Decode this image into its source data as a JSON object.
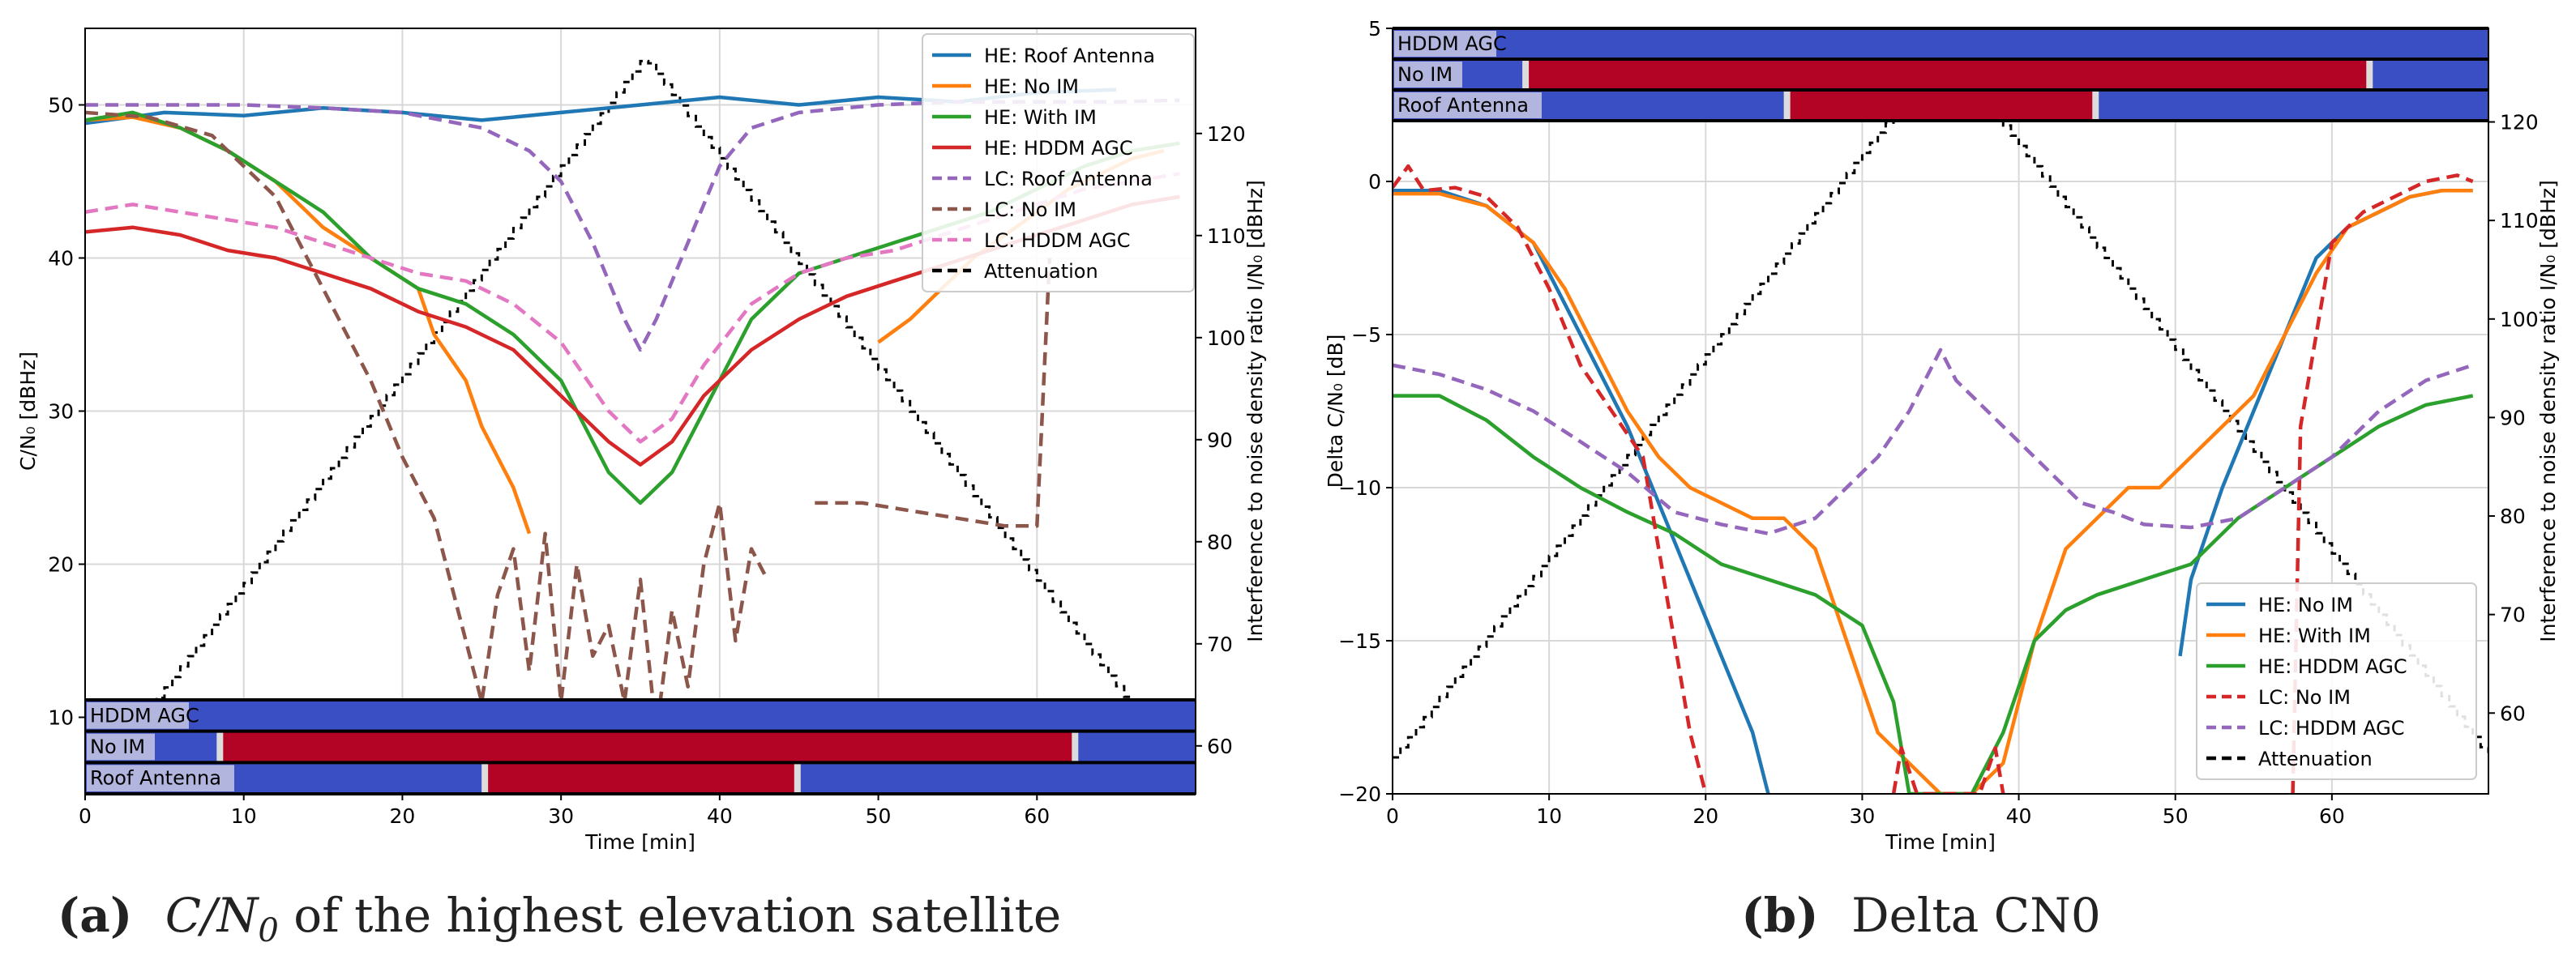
{
  "figure": {
    "caption_a_label": "(a)",
    "caption_a_text": "C/N",
    "caption_a_sub": "0",
    "caption_a_rest": " of the highest elevation satellite",
    "caption_b_label": "(b)",
    "caption_b_text": "Delta CN0"
  },
  "chart_data": [
    {
      "type": "line",
      "panel": "a",
      "xlabel": "Time [min]",
      "ylabel": "C/N₀ [dBHz]",
      "y2label": "Interference to noise density ratio I/N₀ [dBHz]",
      "xlim": [
        0,
        70
      ],
      "ylim": [
        5,
        55
      ],
      "y2lim": [
        55.3,
        130.3
      ],
      "xticks": [
        0,
        10,
        20,
        30,
        40,
        50,
        60
      ],
      "yticks": [
        10,
        20,
        30,
        40,
        50
      ],
      "y2ticks": [
        60,
        70,
        80,
        90,
        100,
        110,
        120
      ],
      "grid": true,
      "legend_position": "top-right",
      "series": [
        {
          "name": "HE: Roof Antenna",
          "color": "#1f77b4",
          "dash": "solid",
          "x": [
            0,
            5,
            10,
            15,
            20,
            25,
            30,
            35,
            40,
            45,
            50,
            55,
            60,
            65
          ],
          "y": [
            48.8,
            49.5,
            49.3,
            49.8,
            49.5,
            49.0,
            49.5,
            50.0,
            50.5,
            50.0,
            50.5,
            50.2,
            50.8,
            51.0
          ]
        },
        {
          "name": "HE: No IM",
          "color": "#ff7f0e",
          "dash": "solid",
          "x": [
            0,
            3,
            6,
            9,
            12,
            15,
            18,
            21,
            22,
            24,
            25,
            27,
            28
          ],
          "y": [
            49,
            49.2,
            48.5,
            47,
            45,
            42,
            40,
            38,
            35,
            32,
            29,
            25,
            22
          ]
        },
        {
          "name": "HE: No IM",
          "color": "#ff7f0e",
          "dash": "solid",
          "x": [
            50,
            52,
            54,
            56,
            58,
            60,
            62,
            64,
            66,
            68
          ],
          "y": [
            34.5,
            36,
            38,
            40,
            41.5,
            43,
            44.5,
            45.5,
            46.5,
            47
          ]
        },
        {
          "name": "HE: With IM",
          "color": "#2ca02c",
          "dash": "solid",
          "x": [
            0,
            3,
            6,
            9,
            12,
            15,
            18,
            21,
            24,
            27,
            30,
            33,
            35,
            37,
            39,
            42,
            45,
            48,
            51,
            54,
            57,
            60,
            63,
            66,
            69
          ],
          "y": [
            49,
            49.5,
            48.5,
            47,
            45,
            43,
            40,
            38,
            37,
            35,
            32,
            26,
            24,
            26,
            30,
            36,
            39,
            40,
            41,
            42,
            43,
            44.5,
            46,
            47,
            47.5
          ]
        },
        {
          "name": "HE: HDDM AGC",
          "color": "#d62728",
          "dash": "solid",
          "x": [
            0,
            3,
            6,
            9,
            12,
            15,
            18,
            21,
            24,
            27,
            30,
            33,
            35,
            37,
            39,
            42,
            45,
            48,
            51,
            54,
            57,
            60,
            63,
            66,
            69
          ],
          "y": [
            41.7,
            42,
            41.5,
            40.5,
            40,
            39,
            38,
            36.5,
            35.5,
            34,
            31,
            28,
            26.5,
            28,
            31,
            34,
            36,
            37.5,
            38.5,
            39.5,
            40.5,
            41.5,
            42.5,
            43.5,
            44
          ]
        },
        {
          "name": "LC: Roof Antenna",
          "color": "#9467bd",
          "dash": "dashed",
          "x": [
            0,
            5,
            10,
            15,
            20,
            25,
            28,
            30,
            32,
            34,
            35,
            36,
            38,
            40,
            42,
            45,
            50,
            55,
            60,
            65,
            69
          ],
          "y": [
            50,
            50,
            50,
            49.8,
            49.5,
            48.5,
            47,
            45,
            41,
            36,
            34,
            36,
            41,
            46,
            48.5,
            49.5,
            50,
            50.2,
            50.2,
            50.2,
            50.3
          ]
        },
        {
          "name": "LC: No IM",
          "color": "#8c564b",
          "dash": "dashed",
          "x": [
            0,
            4,
            8,
            10,
            12,
            14,
            16,
            18,
            20,
            22,
            24,
            25,
            26,
            27,
            28,
            29,
            30,
            31,
            32,
            33,
            34,
            35,
            36,
            37,
            38,
            39,
            40,
            41,
            42,
            43
          ],
          "y": [
            49.5,
            49.2,
            48,
            46,
            44,
            40,
            36,
            32,
            27,
            23,
            15,
            11,
            18,
            21,
            13,
            22,
            11,
            20,
            14,
            16,
            11,
            19,
            9,
            17,
            12,
            20,
            24,
            15,
            21,
            19
          ]
        },
        {
          "name": "LC: No IM",
          "color": "#8c564b",
          "dash": "dashed",
          "x": [
            46,
            49,
            52,
            55,
            58,
            60,
            60.8
          ],
          "y": [
            24,
            24,
            23.5,
            23,
            22.5,
            22.5,
            40
          ]
        },
        {
          "name": "LC: HDDM AGC",
          "color": "#e377c2",
          "dash": "dashed",
          "x": [
            0,
            3,
            6,
            9,
            12,
            15,
            18,
            21,
            24,
            27,
            30,
            33,
            35,
            37,
            39,
            42,
            45,
            48,
            51,
            54,
            57,
            60,
            63,
            66,
            69
          ],
          "y": [
            43,
            43.5,
            43,
            42.5,
            42,
            41,
            40,
            39,
            38.5,
            37,
            34.5,
            30,
            28,
            29.5,
            33,
            37,
            39,
            40,
            40.5,
            41.5,
            42.5,
            43.5,
            44.5,
            45,
            45.5
          ]
        }
      ],
      "attenuation": {
        "name": "Attenuation",
        "color": "#000000",
        "dash": "dashed",
        "x": [
          0,
          35.2,
          70
        ],
        "y2": [
          55.5,
          127.5,
          55.5
        ],
        "axis": "right"
      },
      "legend": [
        "HE: Roof Antenna",
        "HE: No IM",
        "HE: With IM",
        "HE: HDDM AGC",
        "LC: Roof Antenna",
        "LC: No IM",
        "LC: HDDM AGC",
        "Attenuation"
      ],
      "legend_colors": [
        "#1f77b4",
        "#ff7f0e",
        "#2ca02c",
        "#d62728",
        "#9467bd",
        "#8c564b",
        "#e377c2",
        "#000000"
      ],
      "legend_dashes": [
        "solid",
        "solid",
        "solid",
        "solid",
        "dashed",
        "dashed",
        "dashed",
        "dashed"
      ],
      "bands": [
        {
          "label": "HDDM AGC",
          "red_start": null,
          "red_end": null
        },
        {
          "label": "No IM",
          "red_start": 8.6,
          "red_end": 62.3
        },
        {
          "label": "Roof Antenna",
          "red_start": 25.3,
          "red_end": 44.8
        }
      ]
    },
    {
      "type": "line",
      "panel": "b",
      "xlabel": "Time [min]",
      "ylabel": "Delta C/N₀ [dB]",
      "y2label": "Interference to noise density ratio I/N₀ [dBHz]",
      "xlim": [
        0,
        70
      ],
      "ylim": [
        -20,
        5
      ],
      "y2lim": [
        51.8,
        129.5
      ],
      "xticks": [
        0,
        10,
        20,
        30,
        40,
        50,
        60
      ],
      "yticks": [
        -20,
        -15,
        -10,
        -5,
        0,
        5
      ],
      "y2ticks": [
        60,
        70,
        80,
        90,
        100,
        110,
        120
      ],
      "grid": true,
      "legend_position": "bottom-right",
      "series": [
        {
          "name": "HE: No IM",
          "color": "#1f77b4",
          "dash": "solid",
          "x": [
            0,
            3,
            6,
            9,
            11,
            13,
            15,
            17,
            19,
            21,
            23,
            24
          ],
          "y": [
            -0.3,
            -0.3,
            -0.8,
            -2,
            -4,
            -6,
            -8,
            -10.5,
            -13,
            -15.5,
            -18,
            -20
          ]
        },
        {
          "name": "HE: No IM",
          "color": "#1f77b4",
          "dash": "solid",
          "x": [
            50.3,
            51,
            53,
            55,
            57,
            59,
            61,
            63,
            65,
            67,
            69
          ],
          "y": [
            -15.5,
            -13,
            -10,
            -7.5,
            -5,
            -2.5,
            -1.5,
            -1,
            -0.5,
            -0.3,
            -0.3
          ]
        },
        {
          "name": "HE: With IM",
          "color": "#ff7f0e",
          "dash": "solid",
          "x": [
            0,
            3,
            6,
            9,
            11,
            13,
            15,
            17,
            19,
            21,
            23,
            25,
            27,
            29,
            31,
            33,
            35,
            37,
            39,
            41,
            43,
            45,
            47,
            49,
            51,
            53,
            55,
            57,
            59,
            61,
            63,
            65,
            67,
            69
          ],
          "y": [
            -0.4,
            -0.4,
            -0.8,
            -2,
            -3.5,
            -5.5,
            -7.5,
            -9,
            -10,
            -10.5,
            -11,
            -11,
            -12,
            -15,
            -18,
            -19,
            -20,
            -20,
            -19,
            -15,
            -12,
            -11,
            -10,
            -10,
            -9,
            -8,
            -7,
            -5,
            -3,
            -1.5,
            -1,
            -0.5,
            -0.3,
            -0.3
          ]
        },
        {
          "name": "HE: HDDM AGC",
          "color": "#2ca02c",
          "dash": "solid",
          "x": [
            0,
            3,
            6,
            9,
            12,
            15,
            18,
            21,
            24,
            27,
            30,
            32,
            33,
            34,
            35,
            37,
            39,
            41,
            43,
            45,
            48,
            51,
            54,
            57,
            60,
            63,
            66,
            69
          ],
          "y": [
            -7,
            -7,
            -7.8,
            -9,
            -10,
            -10.8,
            -11.5,
            -12.5,
            -13,
            -13.5,
            -14.5,
            -17,
            -20,
            -20,
            -20,
            -20,
            -18,
            -15,
            -14,
            -13.5,
            -13,
            -12.5,
            -11,
            -10,
            -9,
            -8,
            -7.3,
            -7
          ]
        },
        {
          "name": "LC: No IM",
          "color": "#d62728",
          "dash": "dashed",
          "x": [
            0,
            1,
            2,
            4,
            6,
            8,
            10,
            12,
            14,
            16,
            17,
            18,
            19,
            20
          ],
          "y": [
            -0.2,
            0.5,
            -0.3,
            -0.2,
            -0.5,
            -1.5,
            -3.5,
            -6,
            -7.5,
            -9,
            -12,
            -15,
            -18,
            -20
          ]
        },
        {
          "name": "LC: No IM",
          "color": "#d62728",
          "dash": "dashed",
          "x": [
            32,
            32.5,
            33.5,
            37.5,
            38.5,
            39
          ],
          "y": [
            -20,
            -18.5,
            -20,
            -20,
            -18.5,
            -20
          ]
        },
        {
          "name": "LC: No IM",
          "color": "#d62728",
          "dash": "dashed",
          "x": [
            57.5,
            58,
            60,
            62,
            64,
            66,
            68,
            69
          ],
          "y": [
            -20,
            -8,
            -2,
            -1,
            -0.5,
            0,
            0.2,
            0
          ]
        },
        {
          "name": "LC: HDDM AGC",
          "color": "#9467bd",
          "dash": "dashed",
          "x": [
            0,
            3,
            6,
            9,
            12,
            15,
            18,
            21,
            24,
            27,
            29,
            31,
            33,
            34,
            35,
            36,
            38,
            40,
            42,
            44,
            46,
            48,
            51,
            54,
            57,
            60,
            63,
            66,
            69
          ],
          "y": [
            -6,
            -6.3,
            -6.8,
            -7.5,
            -8.5,
            -9.5,
            -10.8,
            -11.2,
            -11.5,
            -11,
            -10,
            -9,
            -7.5,
            -6.5,
            -5.5,
            -6.5,
            -7.5,
            -8.5,
            -9.5,
            -10.5,
            -10.8,
            -11.2,
            -11.3,
            -11,
            -10,
            -9,
            -7.5,
            -6.5,
            -6
          ]
        }
      ],
      "attenuation": {
        "name": "Attenuation",
        "color": "#000000",
        "dash": "dashed",
        "x": [
          0,
          35.2,
          70
        ],
        "y2": [
          55.5,
          127.5,
          55.5
        ],
        "axis": "right"
      },
      "legend": [
        "HE: No IM",
        "HE: With IM",
        "HE: HDDM AGC",
        "LC: No IM",
        "LC: HDDM AGC",
        "Attenuation"
      ],
      "legend_colors": [
        "#1f77b4",
        "#ff7f0e",
        "#2ca02c",
        "#d62728",
        "#9467bd",
        "#000000"
      ],
      "legend_dashes": [
        "solid",
        "solid",
        "solid",
        "dashed",
        "dashed",
        "dashed"
      ],
      "bands": [
        {
          "label": "HDDM AGC",
          "red_start": null,
          "red_end": null
        },
        {
          "label": "No IM",
          "red_start": 8.6,
          "red_end": 62.3
        },
        {
          "label": "Roof Antenna",
          "red_start": 25.3,
          "red_end": 44.8
        }
      ]
    }
  ]
}
